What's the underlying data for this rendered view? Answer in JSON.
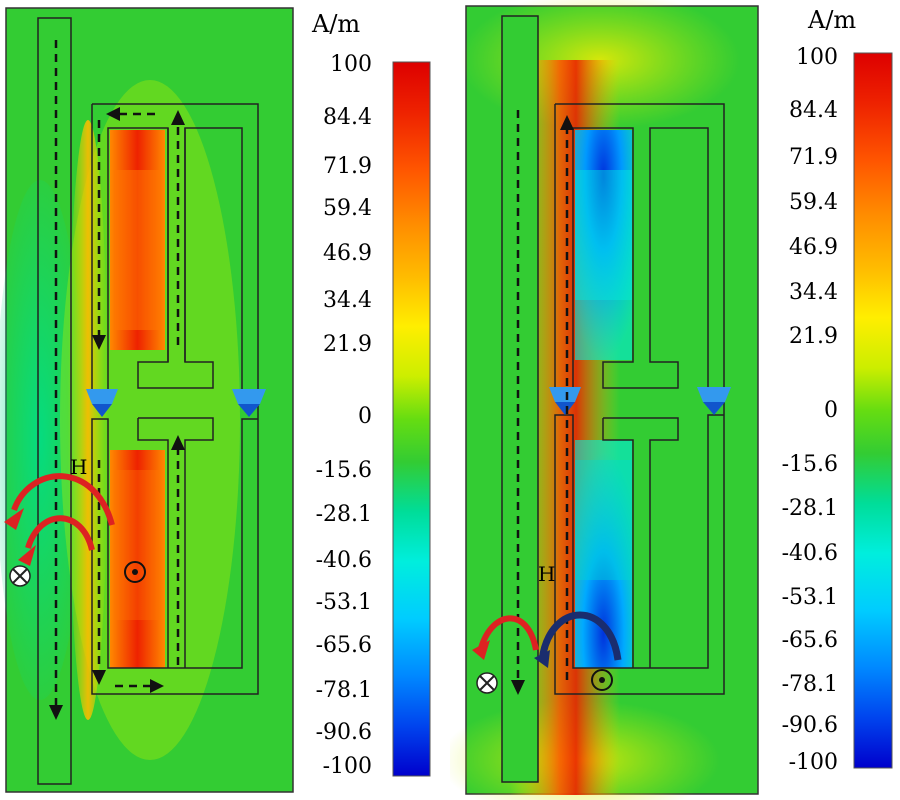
{
  "panels": [
    {
      "unit": "A/m",
      "ticks": [
        "100",
        "84.4",
        "71.9",
        "59.4",
        "46.9",
        "34.4",
        "21.9",
        "0",
        "-15.6",
        "-28.1",
        "-40.6",
        "-53.1",
        "-65.6",
        "-78.1",
        "-90.6",
        "-100"
      ],
      "field_label": "H"
    },
    {
      "unit": "A/m",
      "ticks": [
        "100",
        "84.4",
        "71.9",
        "59.4",
        "46.9",
        "34.4",
        "21.9",
        "0",
        "-15.6",
        "-28.1",
        "-40.6",
        "-53.1",
        "-65.6",
        "-78.1",
        "-90.6",
        "-100"
      ],
      "field_label": "H"
    }
  ],
  "colormap": [
    "#0000cc",
    "#0044ee",
    "#0088ff",
    "#00ccff",
    "#00eedd",
    "#00dd99",
    "#22cc55",
    "#44cc22",
    "#88dd00",
    "#ccee00",
    "#ffee00",
    "#ffbb00",
    "#ff8800",
    "#ff5500",
    "#ee2200",
    "#dd0000"
  ],
  "colors": {
    "background_field": "#33cc33",
    "arrow_red": "#dd2222",
    "arrow_navy": "#1a2d6e"
  }
}
